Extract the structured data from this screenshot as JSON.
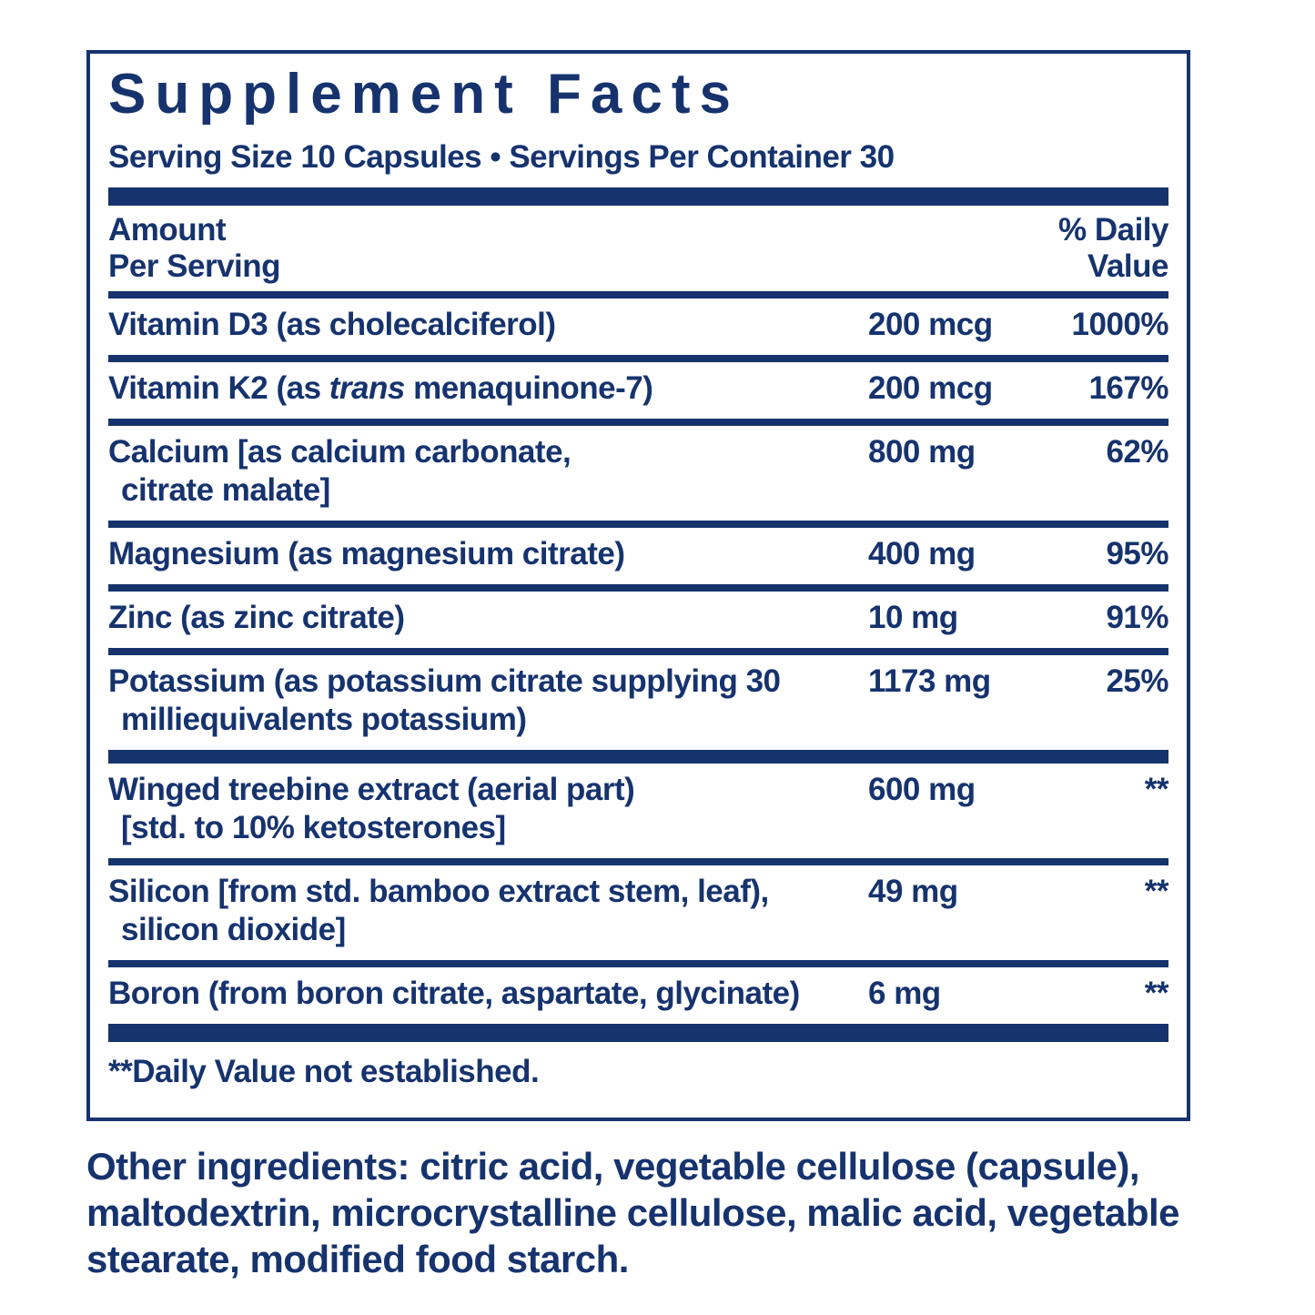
{
  "colors": {
    "navy": "#16336E"
  },
  "panel": {
    "title": "Supplement Facts",
    "serving_line": "Serving Size 10 Capsules • Servings Per Container 30",
    "header": {
      "amount_lines": [
        "Amount",
        "Per Serving"
      ],
      "dv_lines": [
        "% Daily",
        "Value"
      ]
    },
    "sections": [
      {
        "rows": [
          {
            "name_lines": [
              [
                {
                  "t": "Vitamin D3 (as cholecalciferol)"
                }
              ]
            ],
            "amount": "200 mcg",
            "dv": "1000%"
          },
          {
            "name_lines": [
              [
                {
                  "t": "Vitamin K2 (as "
                },
                {
                  "t": "trans",
                  "italic": true
                },
                {
                  "t": " menaquinone-7)"
                }
              ]
            ],
            "amount": "200 mcg",
            "dv": "167%"
          },
          {
            "name_lines": [
              [
                {
                  "t": "Calcium [as calcium carbonate,"
                }
              ],
              [
                {
                  "t": "citrate malate]"
                }
              ]
            ],
            "amount": "800 mg",
            "dv": "62%"
          },
          {
            "name_lines": [
              [
                {
                  "t": "Magnesium (as magnesium citrate)"
                }
              ]
            ],
            "amount": "400 mg",
            "dv": "95%"
          },
          {
            "name_lines": [
              [
                {
                  "t": "Zinc (as zinc citrate)"
                }
              ]
            ],
            "amount": "10 mg",
            "dv": "91%"
          },
          {
            "name_lines": [
              [
                {
                  "t": "Potassium (as potassium citrate supplying 30"
                }
              ],
              [
                {
                  "t": "milliequivalents potassium)"
                }
              ]
            ],
            "amount": "1173 mg",
            "dv": "25%"
          }
        ]
      },
      {
        "rows": [
          {
            "name_lines": [
              [
                {
                  "t": "Winged treebine extract (aerial part)"
                }
              ],
              [
                {
                  "t": "[std. to 10% ketosterones]"
                }
              ]
            ],
            "amount": "600 mg",
            "dv": "**"
          },
          {
            "name_lines": [
              [
                {
                  "t": "Silicon [from std. bamboo extract stem, leaf),"
                }
              ],
              [
                {
                  "t": "silicon dioxide]"
                }
              ]
            ],
            "amount": "49 mg",
            "dv": "**"
          },
          {
            "name_lines": [
              [
                {
                  "t": "Boron (from boron citrate, aspartate, glycinate)"
                }
              ]
            ],
            "amount": "6 mg",
            "dv": "**"
          }
        ]
      }
    ],
    "footnote": "**Daily Value not established."
  },
  "other_ingredients": "Other ingredients: citric acid, vegetable cellulose (capsule), maltodextrin, microcrystalline cellulose, malic acid, vegetable stearate, modified food starch."
}
